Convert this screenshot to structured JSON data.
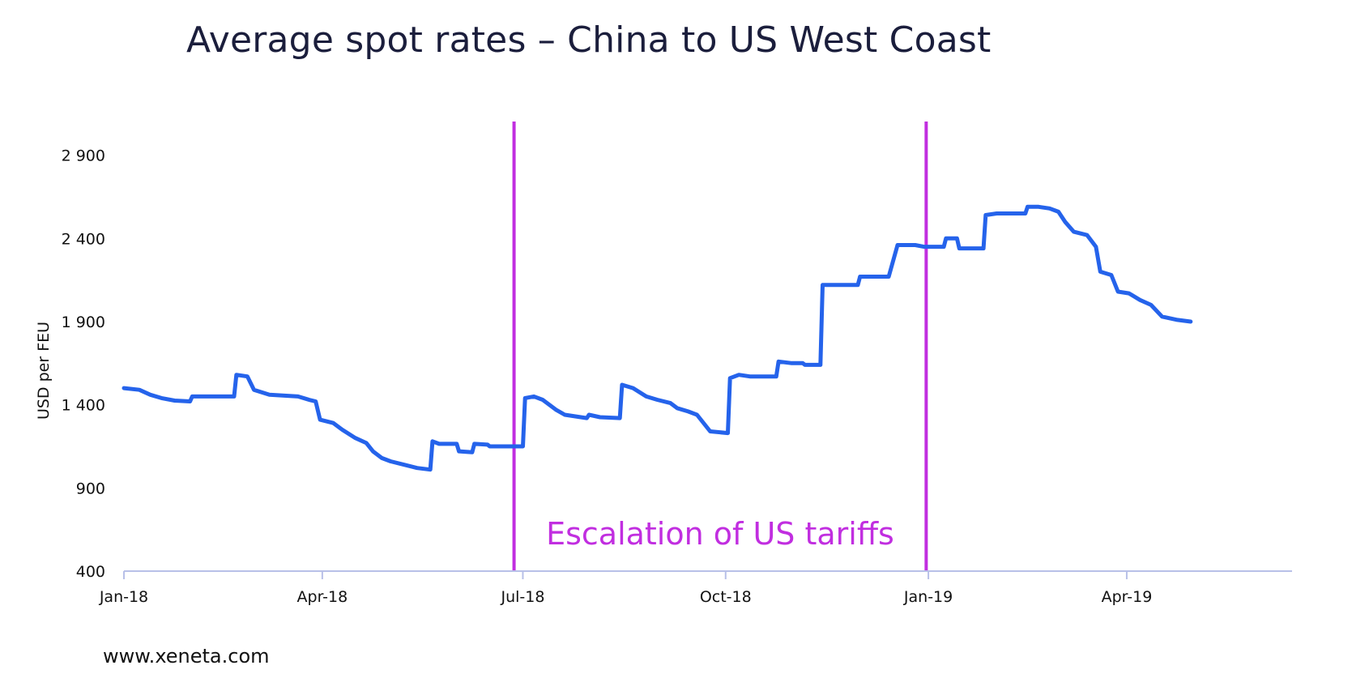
{
  "title": "Average spot rates – China to US West Coast",
  "footer": "www.xeneta.com",
  "colors": {
    "line": "#2563eb",
    "marker": "#c12ee0",
    "axis": "#b8c0e8",
    "background": "#ffffff"
  },
  "chart_data": {
    "type": "line",
    "title": "Average spot rates – China to US West Coast",
    "xlabel": "",
    "ylabel": "USD per FEU",
    "ylim": [
      400,
      3200
    ],
    "yticks": [
      400,
      900,
      1400,
      1900,
      2400,
      2900
    ],
    "ytick_labels": [
      "400",
      "900",
      "1 400",
      "1 900",
      "2 400",
      "2 900"
    ],
    "xlim": [
      "2018-01-01",
      "2019-06-15"
    ],
    "xticks": [
      "2018-01-01",
      "2018-04-01",
      "2018-07-01",
      "2018-10-01",
      "2019-01-01",
      "2019-04-01"
    ],
    "xtick_labels": [
      "Jan-18",
      "Apr-18",
      "Jul-18",
      "Oct-18",
      "Jan-19",
      "Apr-19"
    ],
    "grid": false,
    "legend": "none",
    "markers": [
      {
        "x": "2018-06-27",
        "label": ""
      },
      {
        "x": "2018-12-31",
        "label": ""
      }
    ],
    "annotation": "Escalation of US tariffs",
    "series": [
      {
        "values": [
          [
            "2018-01-01",
            1500
          ],
          [
            "2018-01-08",
            1490
          ],
          [
            "2018-01-13",
            1460
          ],
          [
            "2018-01-18",
            1440
          ],
          [
            "2018-01-24",
            1425
          ],
          [
            "2018-01-31",
            1420
          ],
          [
            "2018-02-01",
            1450
          ],
          [
            "2018-02-20",
            1450
          ],
          [
            "2018-02-21",
            1580
          ],
          [
            "2018-02-26",
            1570
          ],
          [
            "2018-03-01",
            1490
          ],
          [
            "2018-03-08",
            1460
          ],
          [
            "2018-03-21",
            1450
          ],
          [
            "2018-03-26",
            1430
          ],
          [
            "2018-03-29",
            1420
          ],
          [
            "2018-03-31",
            1310
          ],
          [
            "2018-04-06",
            1290
          ],
          [
            "2018-04-10",
            1250
          ],
          [
            "2018-04-16",
            1200
          ],
          [
            "2018-04-21",
            1170
          ],
          [
            "2018-04-24",
            1120
          ],
          [
            "2018-04-28",
            1080
          ],
          [
            "2018-05-02",
            1060
          ],
          [
            "2018-05-08",
            1040
          ],
          [
            "2018-05-14",
            1020
          ],
          [
            "2018-05-20",
            1010
          ],
          [
            "2018-05-21",
            1180
          ],
          [
            "2018-05-24",
            1165
          ],
          [
            "2018-06-01",
            1165
          ],
          [
            "2018-06-02",
            1120
          ],
          [
            "2018-06-08",
            1115
          ],
          [
            "2018-06-09",
            1165
          ],
          [
            "2018-06-15",
            1160
          ],
          [
            "2018-06-16",
            1150
          ],
          [
            "2018-07-01",
            1150
          ],
          [
            "2018-07-02",
            1440
          ],
          [
            "2018-07-06",
            1450
          ],
          [
            "2018-07-10",
            1430
          ],
          [
            "2018-07-16",
            1370
          ],
          [
            "2018-07-20",
            1340
          ],
          [
            "2018-07-30",
            1320
          ],
          [
            "2018-07-31",
            1340
          ],
          [
            "2018-08-05",
            1325
          ],
          [
            "2018-08-14",
            1320
          ],
          [
            "2018-08-15",
            1520
          ],
          [
            "2018-08-20",
            1500
          ],
          [
            "2018-08-26",
            1450
          ],
          [
            "2018-08-31",
            1430
          ],
          [
            "2018-09-06",
            1410
          ],
          [
            "2018-09-09",
            1380
          ],
          [
            "2018-09-14",
            1360
          ],
          [
            "2018-09-18",
            1340
          ],
          [
            "2018-09-24",
            1240
          ],
          [
            "2018-10-02",
            1230
          ],
          [
            "2018-10-03",
            1560
          ],
          [
            "2018-10-07",
            1580
          ],
          [
            "2018-10-12",
            1570
          ],
          [
            "2018-10-24",
            1570
          ],
          [
            "2018-10-25",
            1660
          ],
          [
            "2018-10-31",
            1650
          ],
          [
            "2018-11-05",
            1650
          ],
          [
            "2018-11-06",
            1640
          ],
          [
            "2018-11-13",
            1640
          ],
          [
            "2018-11-14",
            2120
          ],
          [
            "2018-11-25",
            2120
          ],
          [
            "2018-11-30",
            2120
          ],
          [
            "2018-12-01",
            2170
          ],
          [
            "2018-12-10",
            2170
          ],
          [
            "2018-12-14",
            2170
          ],
          [
            "2018-12-18",
            2360
          ],
          [
            "2018-12-26",
            2360
          ],
          [
            "2018-12-30",
            2350
          ],
          [
            "2019-01-08",
            2350
          ],
          [
            "2019-01-09",
            2400
          ],
          [
            "2019-01-14",
            2400
          ],
          [
            "2019-01-15",
            2340
          ],
          [
            "2019-01-18",
            2340
          ],
          [
            "2019-01-26",
            2340
          ],
          [
            "2019-01-27",
            2540
          ],
          [
            "2019-02-01",
            2550
          ],
          [
            "2019-02-05",
            2550
          ],
          [
            "2019-02-14",
            2550
          ],
          [
            "2019-02-15",
            2590
          ],
          [
            "2019-02-20",
            2590
          ],
          [
            "2019-02-25",
            2580
          ],
          [
            "2019-03-01",
            2560
          ],
          [
            "2019-03-04",
            2500
          ],
          [
            "2019-03-08",
            2440
          ],
          [
            "2019-03-14",
            2420
          ],
          [
            "2019-03-18",
            2350
          ],
          [
            "2019-03-20",
            2200
          ],
          [
            "2019-03-25",
            2180
          ],
          [
            "2019-03-28",
            2080
          ],
          [
            "2019-04-02",
            2070
          ],
          [
            "2019-04-07",
            2030
          ],
          [
            "2019-04-12",
            2000
          ],
          [
            "2019-04-17",
            1930
          ],
          [
            "2019-04-24",
            1910
          ],
          [
            "2019-04-30",
            1900
          ]
        ],
        "note_values": "approximate series sampled along x axis"
      }
    ]
  }
}
